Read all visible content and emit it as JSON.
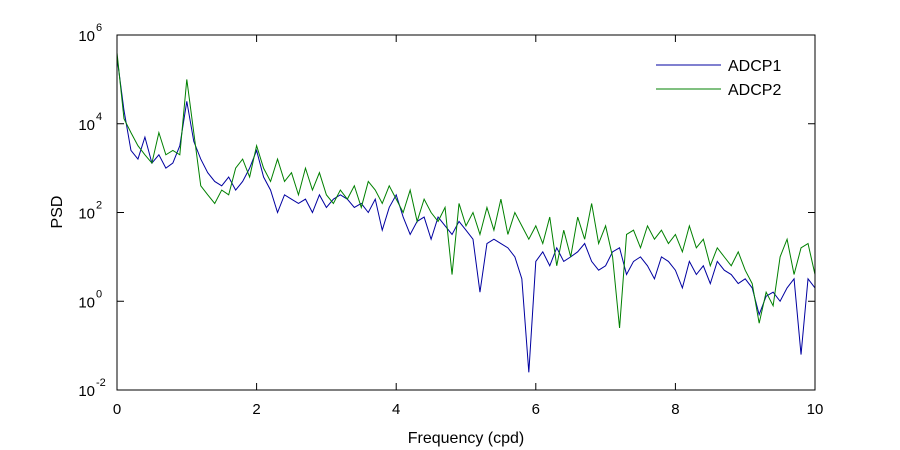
{
  "chart_data": {
    "type": "line",
    "xlabel": "Frequency (cpd)",
    "ylabel": "PSD",
    "log_y": true,
    "grid": false,
    "legend": "northeast",
    "xlim": [
      0,
      10
    ],
    "xticks": [
      0,
      2,
      4,
      6,
      8,
      10
    ],
    "ylim": [
      0.01,
      1000000
    ],
    "yticks": [
      {
        "value": 0.01,
        "label": "10",
        "exponent": "-2"
      },
      {
        "value": 1,
        "label": "10",
        "exponent": "0"
      },
      {
        "value": 100,
        "label": "10",
        "exponent": "2"
      },
      {
        "value": 10000,
        "label": "10",
        "exponent": "4"
      },
      {
        "value": 1000000,
        "label": "10",
        "exponent": "6"
      }
    ],
    "x": [
      0,
      0.1,
      0.2,
      0.3,
      0.4,
      0.5,
      0.6,
      0.7,
      0.8,
      0.9,
      1.0,
      1.1,
      1.2,
      1.3,
      1.4,
      1.5,
      1.6,
      1.7,
      1.8,
      1.9,
      2.0,
      2.1,
      2.2,
      2.3,
      2.4,
      2.5,
      2.6,
      2.7,
      2.8,
      2.9,
      3.0,
      3.1,
      3.2,
      3.3,
      3.4,
      3.5,
      3.6,
      3.7,
      3.8,
      3.9,
      4.0,
      4.1,
      4.2,
      4.3,
      4.4,
      4.5,
      4.6,
      4.7,
      4.8,
      4.9,
      5.0,
      5.1,
      5.2,
      5.3,
      5.4,
      5.5,
      5.6,
      5.7,
      5.8,
      5.9,
      6.0,
      6.1,
      6.2,
      6.3,
      6.4,
      6.5,
      6.6,
      6.7,
      6.8,
      6.9,
      7.0,
      7.1,
      7.2,
      7.3,
      7.4,
      7.5,
      7.6,
      7.7,
      7.8,
      7.9,
      8.0,
      8.1,
      8.2,
      8.3,
      8.4,
      8.5,
      8.6,
      8.7,
      8.8,
      8.9,
      9.0,
      9.1,
      9.2,
      9.3,
      9.4,
      9.5,
      9.6,
      9.7,
      9.8,
      9.9,
      10.0
    ],
    "series": [
      {
        "name": "ADCP1",
        "color": "#0000a0",
        "values": [
          320000,
          20000,
          2500,
          1600,
          5000,
          1300,
          2000,
          1000,
          1300,
          3200,
          32000,
          4000,
          1600,
          790,
          500,
          400,
          630,
          320,
          500,
          1000,
          2500,
          630,
          320,
          100,
          250,
          200,
          160,
          200,
          100,
          250,
          130,
          200,
          250,
          200,
          130,
          160,
          100,
          200,
          40,
          130,
          250,
          79,
          32,
          63,
          79,
          25,
          79,
          50,
          32,
          63,
          40,
          25,
          1.6,
          20,
          25,
          20,
          16,
          10,
          3.2,
          0.025,
          7.9,
          13,
          6.3,
          16,
          7.9,
          10,
          13,
          20,
          7.9,
          5,
          6.3,
          13,
          16,
          4,
          7.9,
          10,
          6.3,
          3.2,
          10,
          7.9,
          5,
          2,
          7.9,
          4,
          6.3,
          2.5,
          7.9,
          5,
          4,
          2.5,
          3.2,
          2,
          0.5,
          1.3,
          1.6,
          1,
          2,
          3.2,
          0.063,
          3.2,
          2
        ]
      },
      {
        "name": "ADCP2",
        "color": "#008000",
        "values": [
          400000,
          13000,
          6300,
          3200,
          2000,
          1300,
          6300,
          2000,
          2500,
          2000,
          100000,
          6300,
          400,
          250,
          160,
          320,
          250,
          1000,
          1600,
          630,
          3200,
          1000,
          500,
          1600,
          500,
          790,
          250,
          1000,
          320,
          790,
          250,
          160,
          320,
          200,
          400,
          130,
          500,
          320,
          160,
          400,
          200,
          100,
          320,
          63,
          200,
          100,
          63,
          130,
          4,
          160,
          50,
          100,
          32,
          130,
          40,
          200,
          32,
          100,
          50,
          25,
          50,
          20,
          79,
          6.3,
          40,
          10,
          79,
          25,
          160,
          20,
          50,
          10,
          0.25,
          32,
          40,
          16,
          50,
          25,
          40,
          20,
          32,
          13,
          50,
          16,
          25,
          6.3,
          16,
          10,
          6.3,
          13,
          5,
          2.5,
          0.32,
          1.6,
          0.79,
          10,
          25,
          4,
          16,
          20,
          4
        ]
      }
    ]
  }
}
